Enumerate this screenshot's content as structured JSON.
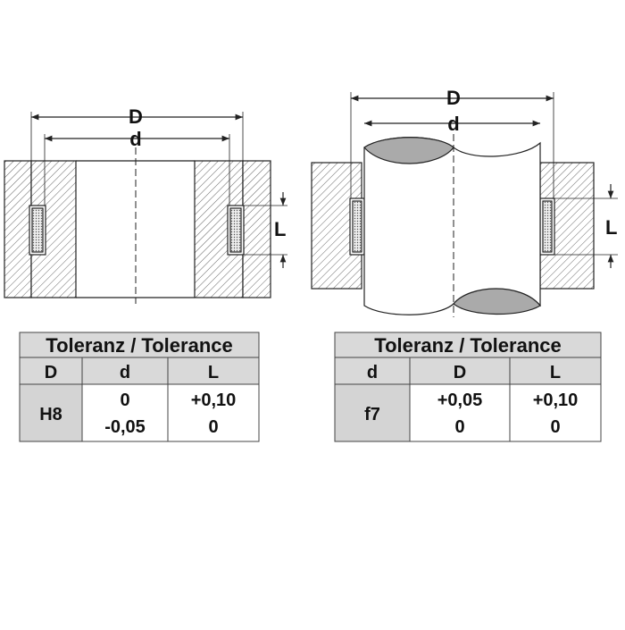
{
  "left_drawing": {
    "outer_diameter": "D",
    "inner_diameter": "d",
    "length": "L"
  },
  "right_drawing": {
    "outer_diameter": "D",
    "inner_diameter": "d",
    "length": "L"
  },
  "left_table": {
    "title": "Toleranz / Tolerance",
    "headers": [
      "D",
      "d",
      "L"
    ],
    "cells": [
      [
        "H8"
      ],
      [
        "0",
        "-0,05"
      ],
      [
        "+0,10",
        "0"
      ]
    ]
  },
  "right_table": {
    "title": "Toleranz / Tolerance",
    "headers": [
      "d",
      "D",
      "L"
    ],
    "cells": [
      [
        "f7"
      ],
      [
        "+0,05",
        "0"
      ],
      [
        "+0,10",
        "0"
      ]
    ]
  }
}
